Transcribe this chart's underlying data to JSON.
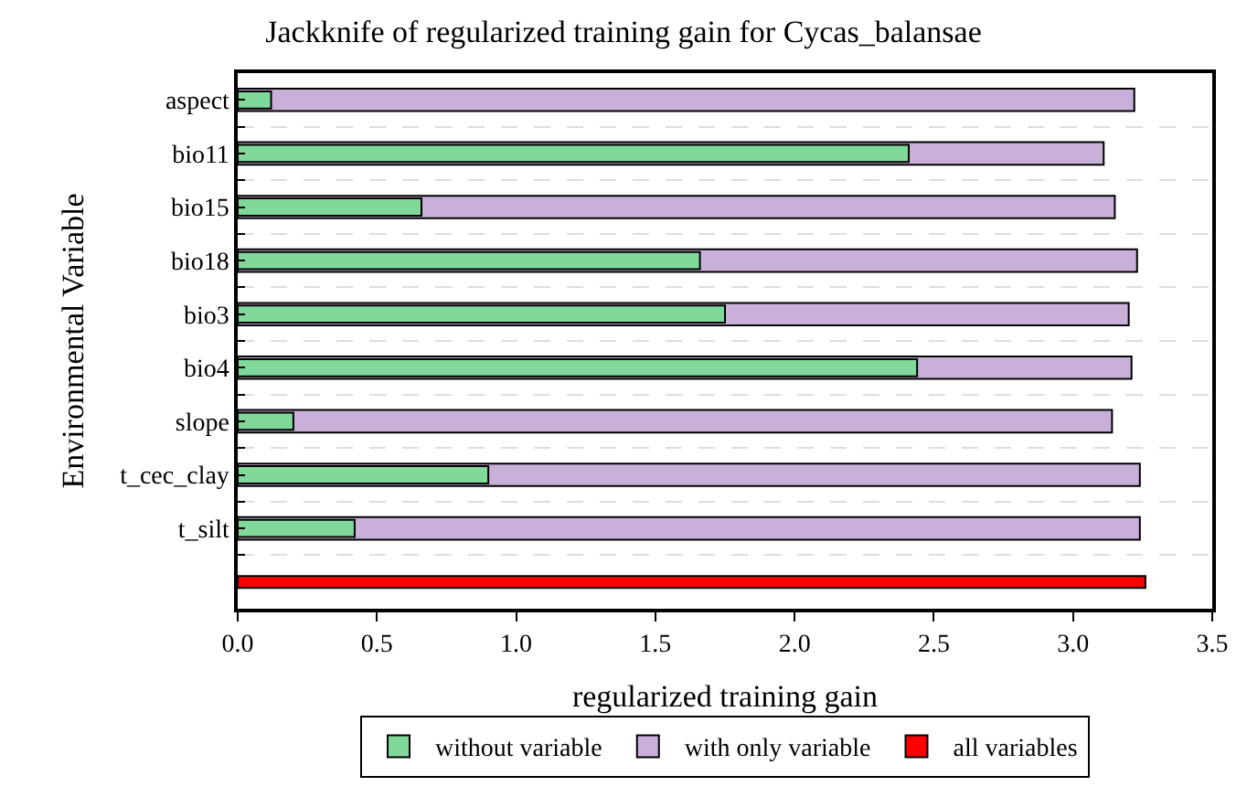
{
  "chart_data": {
    "type": "bar",
    "orientation": "horizontal",
    "title": "Jackknife of regularized training gain for Cycas_balansae",
    "xlabel": "regularized training gain",
    "ylabel": "Environmental Variable",
    "categories": [
      "aspect",
      "bio11",
      "bio15",
      "bio18",
      "bio3",
      "bio4",
      "slope",
      "t_cec_clay",
      "t_silt",
      null
    ],
    "series": [
      {
        "name": "with only variable",
        "color": "#c8b0d8",
        "values": [
          3.22,
          3.11,
          3.15,
          3.23,
          3.2,
          3.21,
          3.14,
          3.24,
          3.24,
          null
        ]
      },
      {
        "name": "without variable",
        "color": "#80d99a",
        "values": [
          0.12,
          2.41,
          0.66,
          1.66,
          1.75,
          2.44,
          0.2,
          0.9,
          0.42,
          null
        ]
      },
      {
        "name": "all variables",
        "color": "#ff0000",
        "values": [
          null,
          null,
          null,
          null,
          null,
          null,
          null,
          null,
          null,
          3.26
        ]
      }
    ],
    "xlim": [
      0,
      3.5
    ],
    "xticks": [
      {
        "value": 0,
        "label": "0.0"
      },
      {
        "value": 0.5,
        "label": "0.5"
      },
      {
        "value": 1,
        "label": "1.0"
      },
      {
        "value": 1.5,
        "label": "1.5"
      },
      {
        "value": 2,
        "label": "2.0"
      },
      {
        "value": 2.5,
        "label": "2.5"
      },
      {
        "value": 3,
        "label": "3.0"
      },
      {
        "value": 3.5,
        "label": "3.5"
      }
    ],
    "grid": "y",
    "legend": "bottom"
  }
}
